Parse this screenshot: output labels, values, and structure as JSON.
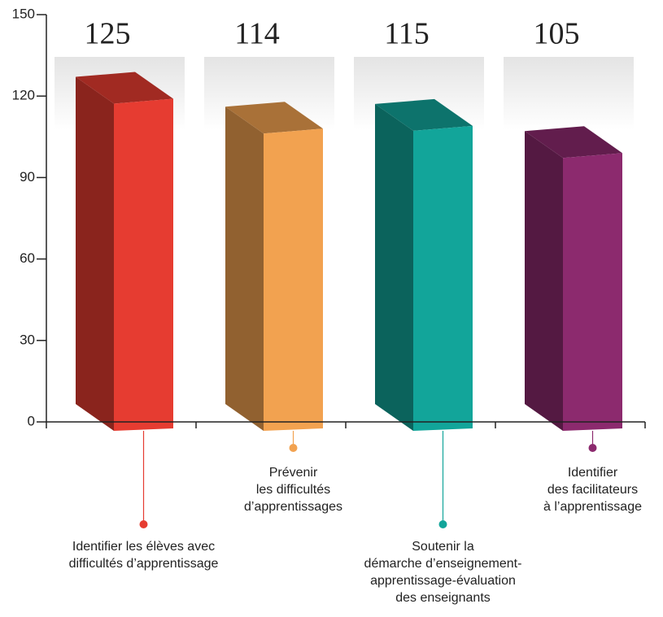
{
  "chart_data": {
    "type": "bar3d",
    "categories": [
      "Identifier les élèves avec\ndifficultés d’apprentissage",
      "Prévenir\nles difficultés\nd’apprentissages",
      "Soutenir la\ndémarche d’enseignement-\napprentissage-évaluation\ndes enseignants",
      "Identifier\ndes facilitateurs\nà l’apprentissage"
    ],
    "values": [
      125,
      114,
      115,
      105
    ],
    "colors": [
      "#e63c31",
      "#f2a250",
      "#12a59a",
      "#8c2a6e"
    ],
    "ylim": [
      0,
      150
    ],
    "yticks": [
      0,
      30,
      60,
      90,
      120,
      150
    ]
  }
}
